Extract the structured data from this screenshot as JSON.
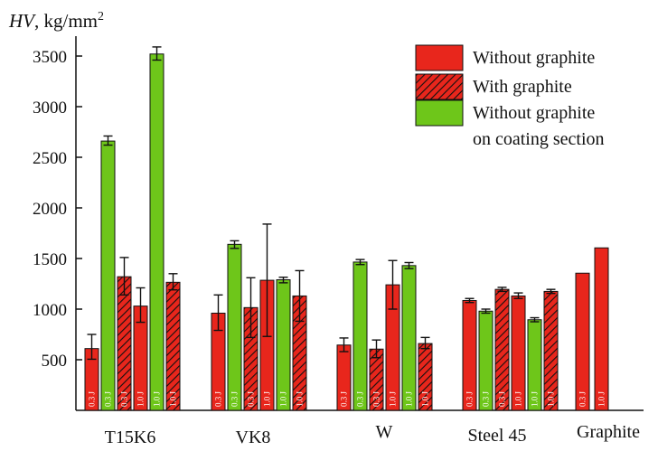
{
  "chart_data": {
    "type": "bar",
    "ylabel_italic": "HV",
    "ylabel_rest": ", kg/mm",
    "ylabel_sup": "2",
    "ylim": [
      0,
      3700
    ],
    "yticks": [
      500,
      1000,
      1500,
      2000,
      2500,
      3000,
      3500
    ],
    "grid": false,
    "legend_position": "top-right",
    "colors": {
      "red": "#e8261c",
      "green": "#6ec61a",
      "outline": "#111111"
    },
    "legend": [
      {
        "key": "without",
        "lines": [
          "Without graphite"
        ]
      },
      {
        "key": "with",
        "lines": [
          "With graphite"
        ]
      },
      {
        "key": "section",
        "lines": [
          "Without graphite",
          "on coating section"
        ]
      }
    ],
    "categories": [
      {
        "name": "T15K6",
        "bars": [
          {
            "series": "without",
            "energy": "0.3 J",
            "value": 610,
            "err": [
              505,
              750
            ]
          },
          {
            "series": "section",
            "energy": "0.3 J",
            "value": 2660,
            "err": [
              2620,
              2710
            ]
          },
          {
            "series": "with",
            "energy": "0.3 J",
            "value": 1320,
            "err": [
              1140,
              1510
            ]
          },
          {
            "series": "without",
            "energy": "1.0 J",
            "value": 1030,
            "err": [
              870,
              1210
            ]
          },
          {
            "series": "section",
            "energy": "1.0 J",
            "value": 3520,
            "err": [
              3460,
              3590
            ]
          },
          {
            "series": "with",
            "energy": "1.0 J",
            "value": 1265,
            "err": [
              1190,
              1350
            ]
          }
        ]
      },
      {
        "name": "VK8",
        "bars": [
          {
            "series": "without",
            "energy": "0.3 J",
            "value": 960,
            "err": [
              790,
              1140
            ]
          },
          {
            "series": "section",
            "energy": "0.3 J",
            "value": 1640,
            "err": [
              1600,
              1675
            ]
          },
          {
            "series": "with",
            "energy": "0.3 J",
            "value": 1015,
            "err": [
              720,
              1310
            ]
          },
          {
            "series": "without",
            "energy": "1.0 J",
            "value": 1285,
            "err": [
              730,
              1840
            ]
          },
          {
            "series": "section",
            "energy": "1.0 J",
            "value": 1290,
            "err": [
              1260,
              1315
            ]
          },
          {
            "series": "with",
            "energy": "1.0 J",
            "value": 1130,
            "err": [
              880,
              1380
            ]
          }
        ]
      },
      {
        "name": "W",
        "bars": [
          {
            "series": "without",
            "energy": "0.3 J",
            "value": 645,
            "err": [
              580,
              715
            ]
          },
          {
            "series": "section",
            "energy": "0.3 J",
            "value": 1465,
            "err": [
              1440,
              1490
            ]
          },
          {
            "series": "with",
            "energy": "0.3 J",
            "value": 605,
            "err": [
              520,
              695
            ]
          },
          {
            "series": "without",
            "energy": "1.0 J",
            "value": 1240,
            "err": [
              1000,
              1480
            ]
          },
          {
            "series": "section",
            "energy": "1.0 J",
            "value": 1430,
            "err": [
              1400,
              1460
            ]
          },
          {
            "series": "with",
            "energy": "1.0 J",
            "value": 660,
            "err": [
              610,
              720
            ]
          }
        ]
      },
      {
        "name": "Steel 45",
        "bars": [
          {
            "series": "without",
            "energy": "0.3 J",
            "value": 1085,
            "err": [
              1065,
              1105
            ]
          },
          {
            "series": "section",
            "energy": "0.3 J",
            "value": 980,
            "err": [
              960,
              1000
            ]
          },
          {
            "series": "with",
            "energy": "0.3 J",
            "value": 1195,
            "err": [
              1175,
              1215
            ]
          },
          {
            "series": "without",
            "energy": "1.0 J",
            "value": 1130,
            "err": [
              1105,
              1160
            ]
          },
          {
            "series": "section",
            "energy": "1.0 J",
            "value": 895,
            "err": [
              875,
              915
            ]
          },
          {
            "series": "with",
            "energy": "1.0 J",
            "value": 1175,
            "err": [
              1155,
              1195
            ]
          }
        ]
      },
      {
        "name": "Graphite",
        "bars": [
          {
            "series": "without",
            "energy": "0.3 J",
            "value": 1355,
            "err": null
          },
          {
            "series": "without",
            "energy": "1.0 J",
            "value": 1605,
            "err": null
          }
        ]
      }
    ]
  }
}
